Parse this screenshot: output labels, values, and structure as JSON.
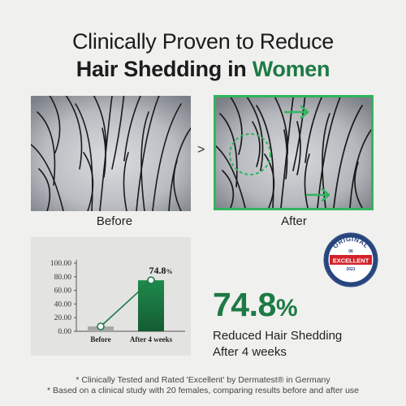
{
  "headline": {
    "line1": "Clinically Proven to Reduce",
    "line2_prefix": "Hair Shedding in ",
    "line2_accent": "Women"
  },
  "comparison": {
    "before_label": "Before",
    "after_label": "After",
    "separator_glyph": ">"
  },
  "chart_data": {
    "type": "bar",
    "categories": [
      "Before",
      "After 4 weeks"
    ],
    "values": [
      0,
      74.8
    ],
    "value_labels": [
      "",
      "74.8%"
    ],
    "ylim": [
      0,
      100
    ],
    "yticks": [
      "0.00",
      "20.00",
      "40.00",
      "60.00",
      "80.00",
      "100.00"
    ],
    "colors": {
      "before": "#a9a9a9",
      "after": "#1d7a45"
    }
  },
  "result": {
    "value": "74.8",
    "unit": "%",
    "line1": "Reduced Hair Shedding",
    "line2": "After 4 weeks"
  },
  "badge": {
    "top": "ORIGINAL",
    "num": "06",
    "middle": "EXCELLENT",
    "year": "2021",
    "bottom": "dermatest"
  },
  "footnotes": [
    "* Clinically Tested and Rated 'Excellent' by Dermatest® in Germany",
    "* Based on a clinical study with 20 females, comparing results before and after use"
  ],
  "colors": {
    "accent": "#1d7a45",
    "highlight": "#2fb55e",
    "badge_red": "#d2232a",
    "badge_blue": "#27457d"
  }
}
